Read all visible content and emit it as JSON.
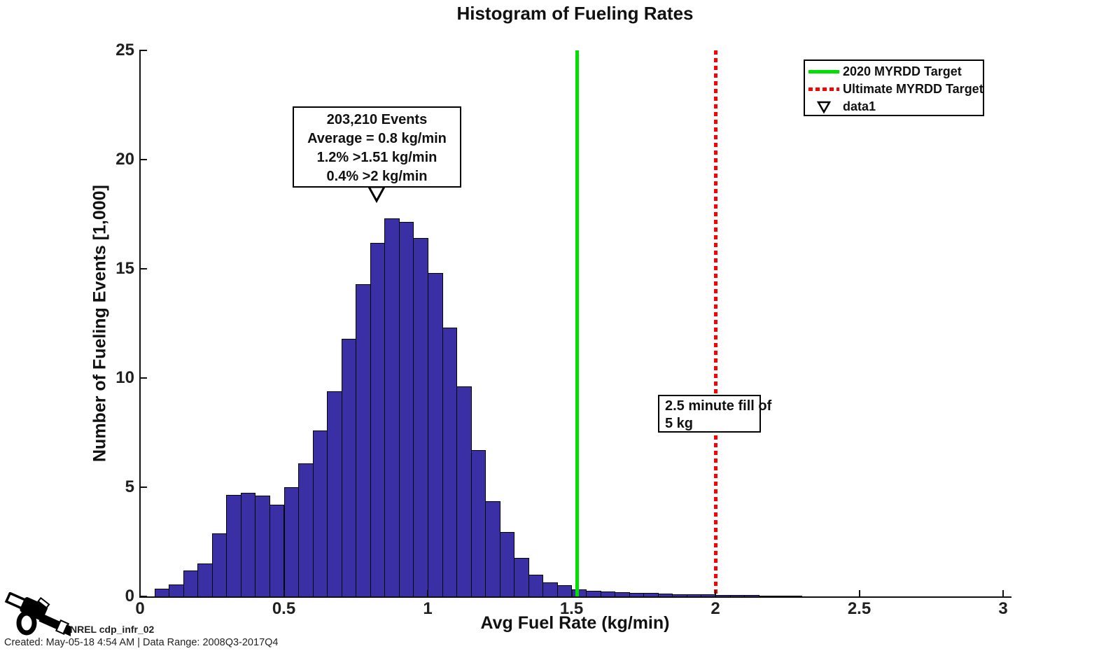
{
  "title": "Histogram of Fueling Rates",
  "legend": {
    "items": [
      {
        "icon": "green-solid-line",
        "label": "2020 MYRDD Target",
        "color": "#00e000"
      },
      {
        "icon": "red-dotted-line",
        "label": "Ultimate MYRDD Target",
        "color": "#ff0000"
      },
      {
        "icon": "open-triangle-marker",
        "label": "data1",
        "color": "#000000"
      }
    ]
  },
  "annotations": {
    "stats_box": {
      "lines": [
        "203,210 Events",
        "Average = 0.8 kg/min",
        "1.2% >1.51 kg/min",
        "0.4% >2 kg/min"
      ],
      "marker_name": "data1",
      "marker_x_value": 0.8
    },
    "fill_box": {
      "lines": [
        "2.5 minute fill of",
        "5 kg"
      ],
      "anchor_x_value": 2.0
    }
  },
  "footer": {
    "source_label": "NREL cdp_infr_02",
    "created_line": "Created: May-05-18  4:54 AM | Data Range: 2008Q3-2017Q4"
  },
  "chart_data": {
    "type": "bar",
    "title": "Histogram of Fueling Rates",
    "xlabel": "Avg Fuel Rate (kg/min)",
    "ylabel": "Number of Fueling Events [1,000]",
    "xlim": [
      0,
      3
    ],
    "ylim": [
      0,
      25
    ],
    "grid": false,
    "legend_position": "top-right",
    "xticks": [
      0,
      0.5,
      1,
      1.5,
      2,
      2.5,
      3
    ],
    "xtick_labels": [
      "0",
      "0.5",
      "1",
      "1.5",
      "2",
      "2.5",
      "3"
    ],
    "yticks": [
      0,
      5,
      10,
      15,
      20,
      25
    ],
    "ytick_labels": [
      "0",
      "5",
      "10",
      "15",
      "20",
      "25"
    ],
    "bar_color": "#3b2fa5",
    "bar_edge_color": "#000000",
    "bin_width": 0.05,
    "bin_starts": [
      0.05,
      0.1,
      0.15,
      0.2,
      0.25,
      0.3,
      0.35,
      0.4,
      0.45,
      0.5,
      0.55,
      0.6,
      0.65,
      0.7,
      0.75,
      0.8,
      0.85,
      0.9,
      0.95,
      1.0,
      1.05,
      1.1,
      1.15,
      1.2,
      1.25,
      1.3,
      1.35,
      1.4,
      1.45,
      1.5,
      1.55,
      1.6,
      1.65,
      1.7,
      1.75,
      1.8,
      1.85,
      1.9,
      1.95,
      2.0,
      2.05,
      2.1,
      2.15,
      2.2,
      2.25,
      2.3,
      2.35,
      2.4,
      2.45
    ],
    "values_thousands": [
      0.35,
      0.55,
      1.2,
      1.5,
      2.9,
      4.65,
      4.75,
      4.6,
      4.2,
      5.0,
      6.1,
      7.6,
      9.4,
      11.8,
      14.3,
      16.2,
      17.3,
      17.15,
      16.4,
      14.8,
      12.3,
      9.6,
      6.7,
      4.35,
      2.95,
      1.75,
      1.0,
      0.65,
      0.5,
      0.32,
      0.26,
      0.21,
      0.18,
      0.16,
      0.15,
      0.13,
      0.11,
      0.1,
      0.09,
      0.08,
      0.06,
      0.05,
      0.03,
      0.02,
      0.02,
      0.01,
      0.01,
      0.01,
      0.01
    ],
    "vlines": [
      {
        "name": "target-line-2020",
        "x": 1.52,
        "style": "solid",
        "color": "#00e000",
        "label": "2020 MYRDD Target"
      },
      {
        "name": "target-line-ultimate",
        "x": 2.0,
        "style": "dotted",
        "color": "#ff0000",
        "label": "Ultimate MYRDD Target"
      }
    ],
    "summary": {
      "total_events": 203210,
      "average_kg_min": 0.8,
      "pct_gt_1_51": 1.2,
      "pct_gt_2": 0.4
    }
  }
}
